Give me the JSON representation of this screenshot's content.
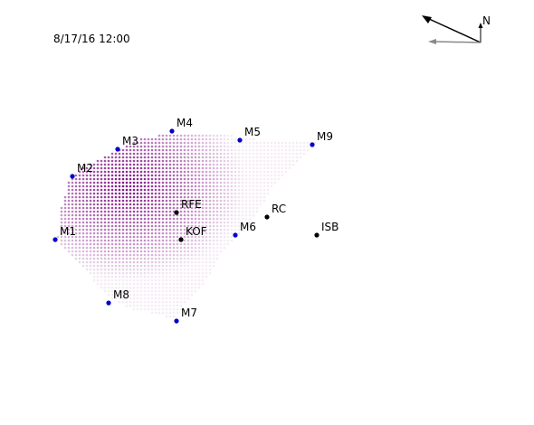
{
  "timestamp": "8/17/16 12:00",
  "north_label": "N",
  "colors": {
    "station_blue": "#0000cc",
    "station_black": "#000000",
    "field": "#7b0d80",
    "arrow_main": "#000000",
    "arrow_grey": "#888888"
  },
  "stations_blue": [
    {
      "label": "M1"
    },
    {
      "label": "M2"
    },
    {
      "label": "M3"
    },
    {
      "label": "M4"
    },
    {
      "label": "M5"
    },
    {
      "label": "M9"
    },
    {
      "label": "M6"
    },
    {
      "label": "M8"
    },
    {
      "label": "M7"
    }
  ],
  "stations_black": [
    {
      "label": "RFE"
    },
    {
      "label": "KOF"
    },
    {
      "label": "RC"
    },
    {
      "label": "ISB"
    }
  ],
  "icons": [
    "north-arrow-icon",
    "wind-vector-icon"
  ]
}
